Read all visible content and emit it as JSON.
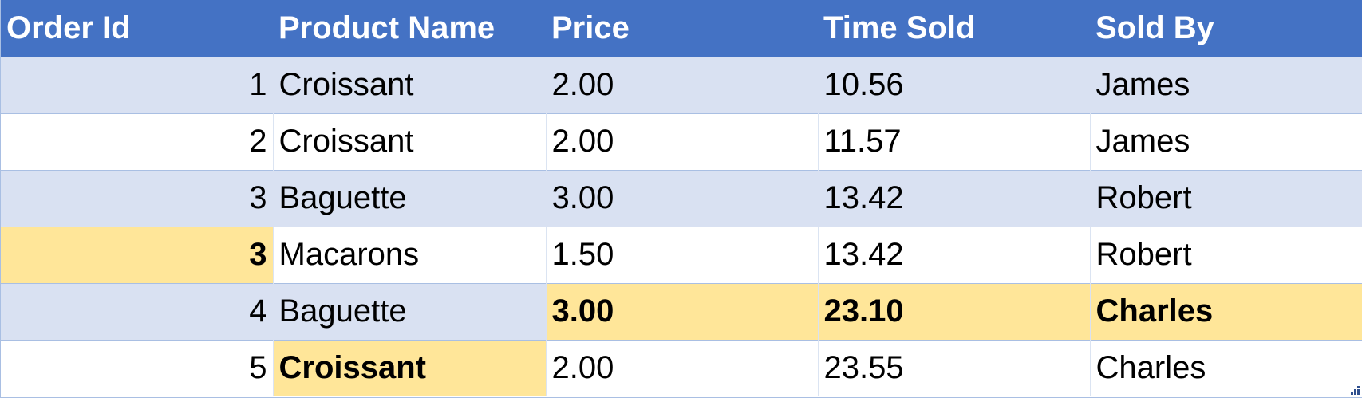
{
  "table": {
    "headers": [
      "Order Id",
      "Product Name",
      "Price",
      "Time Sold",
      "Sold By"
    ],
    "rows": [
      {
        "order_id": "1",
        "product": "Croissant",
        "price": "2.00",
        "time": "10.56",
        "sold_by": "James"
      },
      {
        "order_id": "2",
        "product": "Croissant",
        "price": "2.00",
        "time": "11.57",
        "sold_by": "James"
      },
      {
        "order_id": "3",
        "product": "Baguette",
        "price": "3.00",
        "time": "13.42",
        "sold_by": "Robert"
      },
      {
        "order_id": "3",
        "product": "Macarons",
        "price": "1.50",
        "time": "13.42",
        "sold_by": "Robert"
      },
      {
        "order_id": "4",
        "product": "Baguette",
        "price": "3.00",
        "time": "23.10",
        "sold_by": "Charles"
      },
      {
        "order_id": "5",
        "product": "Croissant",
        "price": "2.00",
        "time": "23.55",
        "sold_by": "Charles"
      }
    ]
  },
  "highlighted_cells": [
    "row 4 Order Id",
    "row 5 Price",
    "row 5 Time Sold",
    "row 5 Sold By",
    "row 6 Product Name"
  ],
  "colors": {
    "header_bg": "#4472c4",
    "header_text": "#ffffff",
    "band_row_bg": "#d9e1f2",
    "highlight_bg": "#ffe699",
    "border": "#a9bfe3"
  },
  "icons": {
    "resize_handle": "table-resize-handle-icon"
  }
}
